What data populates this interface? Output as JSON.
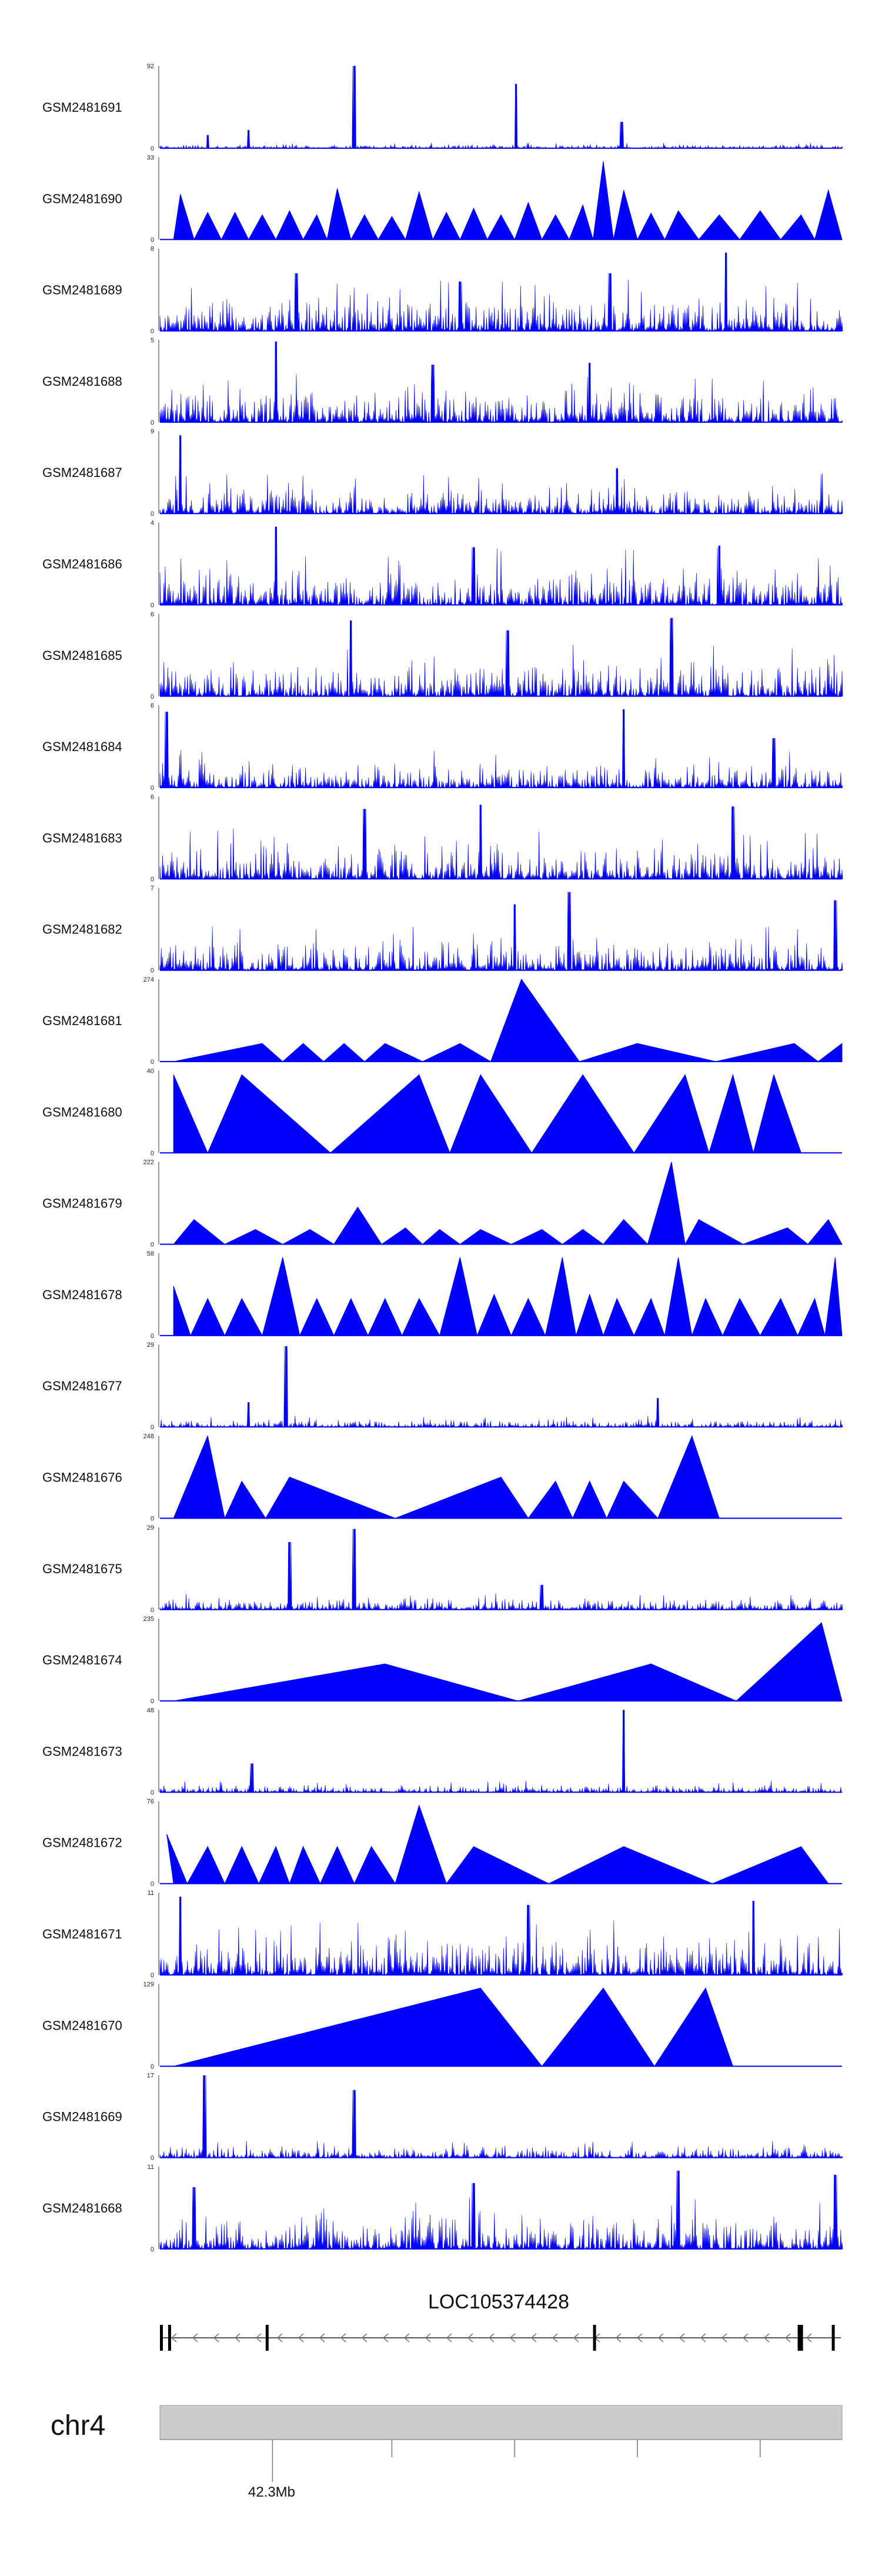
{
  "chart_data": {
    "type": "area",
    "title": "",
    "color": "#0000ff",
    "tracks": [
      {
        "sample": "GSM2481691",
        "ymax": 92,
        "ymin": 0,
        "style": "spiky",
        "peaks": [
          [
            0.07,
            0.16
          ],
          [
            0.13,
            0.22
          ],
          [
            0.285,
            1.0
          ],
          [
            0.522,
            0.78
          ],
          [
            0.677,
            0.32
          ]
        ],
        "noise": 0.05
      },
      {
        "sample": "GSM2481690",
        "ymax": 33,
        "ymin": 0,
        "style": "triangles",
        "peaks": [
          [
            0.03,
            0.55
          ],
          [
            0.07,
            0.33
          ],
          [
            0.11,
            0.33
          ],
          [
            0.15,
            0.3
          ],
          [
            0.19,
            0.35
          ],
          [
            0.23,
            0.3
          ],
          [
            0.26,
            0.62
          ],
          [
            0.3,
            0.3
          ],
          [
            0.34,
            0.28
          ],
          [
            0.38,
            0.58
          ],
          [
            0.42,
            0.33
          ],
          [
            0.46,
            0.38
          ],
          [
            0.5,
            0.3
          ],
          [
            0.54,
            0.45
          ],
          [
            0.58,
            0.3
          ],
          [
            0.62,
            0.42
          ],
          [
            0.65,
            0.95
          ],
          [
            0.68,
            0.6
          ],
          [
            0.72,
            0.32
          ],
          [
            0.76,
            0.35
          ],
          [
            0.82,
            0.3
          ],
          [
            0.88,
            0.35
          ],
          [
            0.94,
            0.3
          ],
          [
            0.98,
            0.6
          ]
        ],
        "noise": 0.1
      },
      {
        "sample": "GSM2481689",
        "ymax": 8,
        "ymin": 0,
        "style": "spiky",
        "peaks": [
          [
            0.2,
            0.7
          ],
          [
            0.44,
            0.6
          ],
          [
            0.66,
            0.7
          ],
          [
            0.83,
            0.95
          ]
        ],
        "noise": 0.45
      },
      {
        "sample": "GSM2481688",
        "ymax": 5,
        "ymin": 0,
        "style": "spiky",
        "peaks": [
          [
            0.17,
            0.98
          ],
          [
            0.4,
            0.7
          ],
          [
            0.63,
            0.72
          ]
        ],
        "noise": 0.45
      },
      {
        "sample": "GSM2481687",
        "ymax": 9,
        "ymin": 0,
        "style": "spiky",
        "peaks": [
          [
            0.03,
            0.95
          ],
          [
            0.67,
            0.55
          ]
        ],
        "noise": 0.35
      },
      {
        "sample": "GSM2481686",
        "ymax": 4,
        "ymin": 0,
        "style": "spiky",
        "peaks": [
          [
            0.17,
            0.95
          ],
          [
            0.46,
            0.7
          ],
          [
            0.82,
            0.72
          ]
        ],
        "noise": 0.5
      },
      {
        "sample": "GSM2481685",
        "ymax": 6,
        "ymin": 0,
        "style": "spiky",
        "peaks": [
          [
            0.28,
            0.92
          ],
          [
            0.51,
            0.8
          ],
          [
            0.75,
            0.95
          ]
        ],
        "noise": 0.45
      },
      {
        "sample": "GSM2481684",
        "ymax": 6,
        "ymin": 0,
        "style": "spiky",
        "peaks": [
          [
            0.01,
            0.92
          ],
          [
            0.68,
            0.95
          ],
          [
            0.9,
            0.6
          ]
        ],
        "noise": 0.35
      },
      {
        "sample": "GSM2481683",
        "ymax": 6,
        "ymin": 0,
        "style": "spiky",
        "peaks": [
          [
            0.3,
            0.85
          ],
          [
            0.47,
            0.9
          ],
          [
            0.84,
            0.88
          ]
        ],
        "noise": 0.45
      },
      {
        "sample": "GSM2481682",
        "ymax": 7,
        "ymin": 0,
        "style": "spiky",
        "peaks": [
          [
            0.6,
            0.95
          ],
          [
            0.52,
            0.8
          ],
          [
            0.99,
            0.85
          ]
        ],
        "noise": 0.4
      },
      {
        "sample": "GSM2481681",
        "ymax": 274,
        "ymin": 0,
        "style": "triangles",
        "peaks": [
          [
            0.15,
            0.22
          ],
          [
            0.21,
            0.22
          ],
          [
            0.27,
            0.22
          ],
          [
            0.33,
            0.22
          ],
          [
            0.44,
            0.22
          ],
          [
            0.53,
            1.0
          ],
          [
            0.7,
            0.22
          ],
          [
            0.93,
            0.22
          ],
          [
            1.0,
            0.22
          ]
        ],
        "noise": 0.0
      },
      {
        "sample": "GSM2481680",
        "ymax": 40,
        "ymin": 0,
        "style": "triangles",
        "peaks": [
          [
            0.02,
            0.95
          ],
          [
            0.12,
            0.95
          ],
          [
            0.38,
            0.95
          ],
          [
            0.47,
            0.95
          ],
          [
            0.62,
            0.95
          ],
          [
            0.77,
            0.95
          ],
          [
            0.84,
            0.95
          ],
          [
            0.9,
            0.95
          ]
        ],
        "noise": 0.0
      },
      {
        "sample": "GSM2481679",
        "ymax": 222,
        "ymin": 0,
        "style": "triangles",
        "peaks": [
          [
            0.05,
            0.3
          ],
          [
            0.14,
            0.18
          ],
          [
            0.22,
            0.18
          ],
          [
            0.29,
            0.45
          ],
          [
            0.36,
            0.2
          ],
          [
            0.41,
            0.18
          ],
          [
            0.47,
            0.18
          ],
          [
            0.56,
            0.18
          ],
          [
            0.62,
            0.18
          ],
          [
            0.68,
            0.3
          ],
          [
            0.68,
            0.3
          ],
          [
            0.75,
            1.0
          ],
          [
            0.79,
            0.3
          ],
          [
            0.92,
            0.2
          ],
          [
            0.98,
            0.3
          ]
        ],
        "noise": 0.0
      },
      {
        "sample": "GSM2481678",
        "ymax": 58,
        "ymin": 0,
        "style": "triangles",
        "peaks": [
          [
            0.02,
            0.6
          ],
          [
            0.07,
            0.45
          ],
          [
            0.12,
            0.45
          ],
          [
            0.18,
            0.95
          ],
          [
            0.23,
            0.45
          ],
          [
            0.28,
            0.45
          ],
          [
            0.33,
            0.45
          ],
          [
            0.38,
            0.45
          ],
          [
            0.44,
            0.95
          ],
          [
            0.49,
            0.5
          ],
          [
            0.54,
            0.45
          ],
          [
            0.59,
            0.95
          ],
          [
            0.63,
            0.5
          ],
          [
            0.67,
            0.45
          ],
          [
            0.72,
            0.45
          ],
          [
            0.76,
            0.95
          ],
          [
            0.8,
            0.45
          ],
          [
            0.85,
            0.45
          ],
          [
            0.91,
            0.45
          ],
          [
            0.96,
            0.45
          ],
          [
            0.99,
            0.95
          ]
        ],
        "noise": 0.0
      },
      {
        "sample": "GSM2481677",
        "ymax": 29,
        "ymin": 0,
        "style": "spiky",
        "peaks": [
          [
            0.13,
            0.3
          ],
          [
            0.185,
            0.98
          ],
          [
            0.73,
            0.35
          ]
        ],
        "noise": 0.1
      },
      {
        "sample": "GSM2481676",
        "ymax": 248,
        "ymin": 0,
        "style": "triangles",
        "peaks": [
          [
            0.07,
            1.0
          ],
          [
            0.12,
            0.45
          ],
          [
            0.19,
            0.5
          ],
          [
            0.5,
            0.5
          ],
          [
            0.58,
            0.45
          ],
          [
            0.63,
            0.45
          ],
          [
            0.68,
            0.45
          ],
          [
            0.78,
            1.0
          ]
        ],
        "noise": 0.0
      },
      {
        "sample": "GSM2481675",
        "ymax": 29,
        "ymin": 0,
        "style": "spiky",
        "peaks": [
          [
            0.19,
            0.82
          ],
          [
            0.285,
            0.98
          ],
          [
            0.56,
            0.3
          ]
        ],
        "noise": 0.15
      },
      {
        "sample": "GSM2481674",
        "ymax": 235,
        "ymin": 0,
        "style": "triangles",
        "peaks": [
          [
            0.33,
            0.45
          ],
          [
            0.72,
            0.45
          ],
          [
            0.97,
            0.95
          ]
        ],
        "noise": 0.0
      },
      {
        "sample": "GSM2481673",
        "ymax": 48,
        "ymin": 0,
        "style": "spiky",
        "peaks": [
          [
            0.135,
            0.35
          ],
          [
            0.68,
            1.0
          ]
        ],
        "noise": 0.1
      },
      {
        "sample": "GSM2481672",
        "ymax": 76,
        "ymin": 0,
        "style": "triangles",
        "peaks": [
          [
            0.01,
            0.6
          ],
          [
            0.07,
            0.45
          ],
          [
            0.12,
            0.45
          ],
          [
            0.17,
            0.45
          ],
          [
            0.21,
            0.45
          ],
          [
            0.26,
            0.45
          ],
          [
            0.31,
            0.45
          ],
          [
            0.38,
            0.95
          ],
          [
            0.46,
            0.45
          ],
          [
            0.68,
            0.45
          ],
          [
            0.94,
            0.45
          ]
        ],
        "noise": 0.0
      },
      {
        "sample": "GSM2481671",
        "ymax": 11,
        "ymin": 0,
        "style": "spiky",
        "peaks": [
          [
            0.03,
            0.95
          ],
          [
            0.54,
            0.85
          ],
          [
            0.87,
            0.9
          ]
        ],
        "noise": 0.5
      },
      {
        "sample": "GSM2481670",
        "ymax": 129,
        "ymin": 0,
        "style": "triangles",
        "peaks": [
          [
            0.47,
            0.95
          ],
          [
            0.65,
            0.95
          ],
          [
            0.8,
            0.95
          ]
        ],
        "noise": 0.0
      },
      {
        "sample": "GSM2481669",
        "ymax": 17,
        "ymin": 0,
        "style": "spiky",
        "peaks": [
          [
            0.065,
            1.0
          ],
          [
            0.285,
            0.82
          ]
        ],
        "noise": 0.15
      },
      {
        "sample": "GSM2481668",
        "ymax": 11,
        "ymin": 0,
        "style": "spiky",
        "peaks": [
          [
            0.05,
            0.75
          ],
          [
            0.46,
            0.8
          ],
          [
            0.76,
            0.95
          ],
          [
            0.99,
            0.9
          ]
        ],
        "noise": 0.45
      }
    ],
    "gene": {
      "name": "LOC105374428",
      "strand": "-",
      "exons": [
        0.0,
        0.012,
        0.155,
        0.635,
        0.935,
        0.985
      ]
    },
    "chromosome": {
      "name": "chr4",
      "tick_label": "42.3Mb",
      "labeled_tick": 0.165,
      "ticks": [
        0.165,
        0.34,
        0.52,
        0.7,
        0.88
      ]
    }
  }
}
